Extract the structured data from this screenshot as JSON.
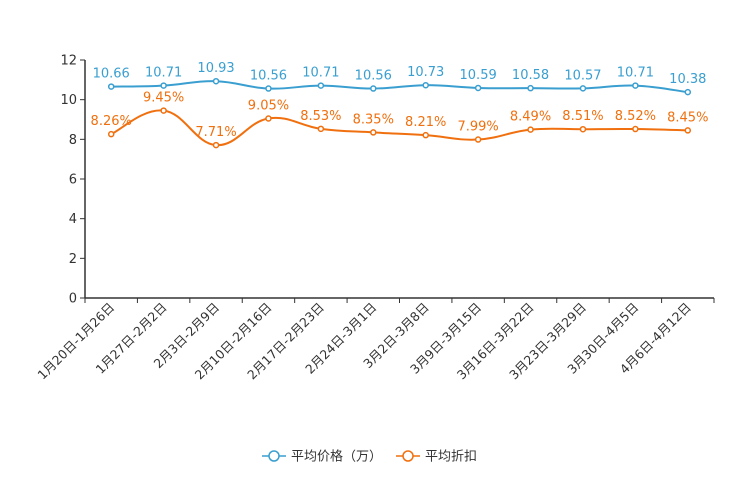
{
  "chart_data": {
    "type": "line",
    "title": "",
    "xlabel": "",
    "ylabel": "",
    "ylim": [
      0,
      12
    ],
    "y_ticks": [
      "0",
      "2",
      "4",
      "6",
      "8",
      "10",
      "12"
    ],
    "grid": false,
    "legend_position": "bottom-center",
    "categories": [
      "1月20日-1月26日",
      "1月27日-2月2日",
      "2月3日-2月9日",
      "2月10日-2月16日",
      "2月17日-2月23日",
      "2月24日-3月1日",
      "3月2日-3月8日",
      "3月9日-3月15日",
      "3月16日-3月22日",
      "3月23日-3月29日",
      "3月30日-4月5日",
      "4月6日-4月12日"
    ],
    "series": [
      {
        "name": "平均价格（万）",
        "color": "#3a9fd0",
        "values": [
          10.66,
          10.71,
          10.93,
          10.56,
          10.71,
          10.56,
          10.73,
          10.59,
          10.58,
          10.57,
          10.71,
          10.38
        ],
        "labels": [
          "10.66",
          "10.71",
          "10.93",
          "10.56",
          "10.71",
          "10.56",
          "10.73",
          "10.59",
          "10.58",
          "10.57",
          "10.71",
          "10.38"
        ]
      },
      {
        "name": "平均折扣",
        "color": "#f0700f",
        "values": [
          8.26,
          9.45,
          7.71,
          9.05,
          8.53,
          8.35,
          8.21,
          7.99,
          8.49,
          8.51,
          8.52,
          8.45
        ],
        "labels": [
          "8.26%",
          "9.45%",
          "7.71%",
          "9.05%",
          "8.53%",
          "8.35%",
          "8.21%",
          "7.99%",
          "8.49%",
          "8.51%",
          "8.52%",
          "8.45%"
        ]
      }
    ]
  }
}
